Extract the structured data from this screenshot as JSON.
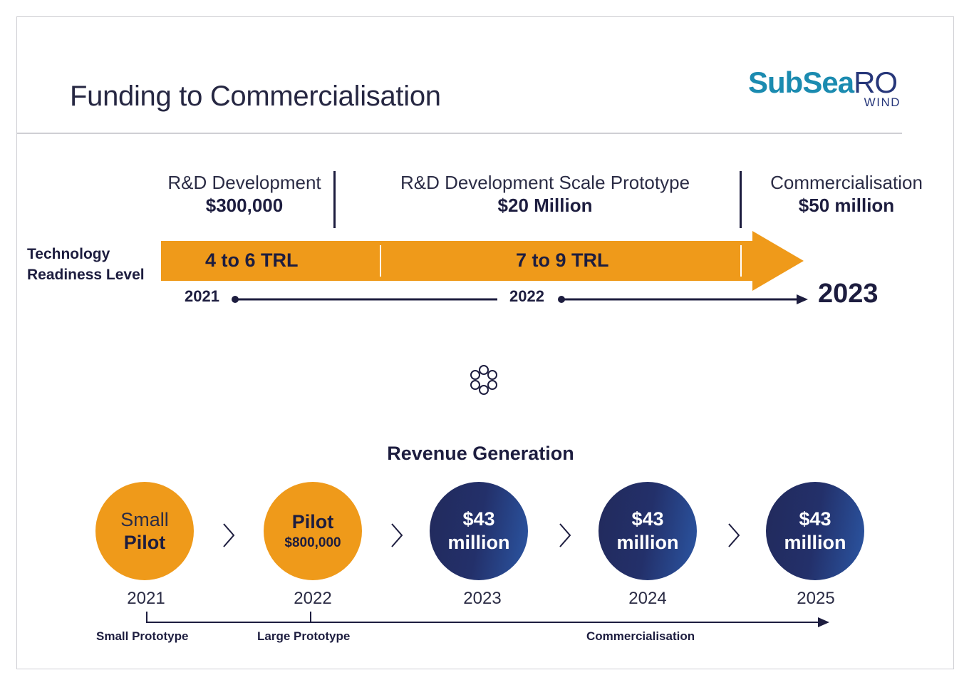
{
  "title": "Funding to Commercialisation",
  "logo": {
    "main": "SubSea",
    "accent": "RO",
    "sub": "WIND",
    "colors": {
      "subsea": "#1b8bb0",
      "ro": "#27377a"
    }
  },
  "phases": [
    {
      "name": "R&D Development",
      "amount": "$300,000"
    },
    {
      "name": "R&D Development Scale Prototype",
      "amount": "$20 Million"
    },
    {
      "name": "Commercialisation",
      "amount": "$50 million"
    }
  ],
  "trl": {
    "label_line1": "Technology",
    "label_line2": "Readiness Level",
    "segments": [
      "4 to 6 TRL",
      "7 to 9 TRL"
    ],
    "color": "#ef9a1a"
  },
  "timeline_top": {
    "years": [
      "2021",
      "2022"
    ],
    "end_year": "2023"
  },
  "revenue": {
    "title": "Revenue Generation",
    "steps": [
      {
        "line1": "Small",
        "line2": "Pilot",
        "year": "2021",
        "style": "orange"
      },
      {
        "line1": "Pilot",
        "line2": "$800,000",
        "year": "2022",
        "style": "orange"
      },
      {
        "line1": "$43",
        "line2": "million",
        "year": "2023",
        "style": "navy"
      },
      {
        "line1": "$43",
        "line2": "million",
        "year": "2024",
        "style": "navy"
      },
      {
        "line1": "$43",
        "line2": "million",
        "year": "2025",
        "style": "navy"
      }
    ],
    "stages": [
      "Small Prototype",
      "Large Prototype",
      "Commercialisation"
    ]
  },
  "colors": {
    "navy": "#1d1d3f",
    "orange": "#ef9a1a"
  }
}
